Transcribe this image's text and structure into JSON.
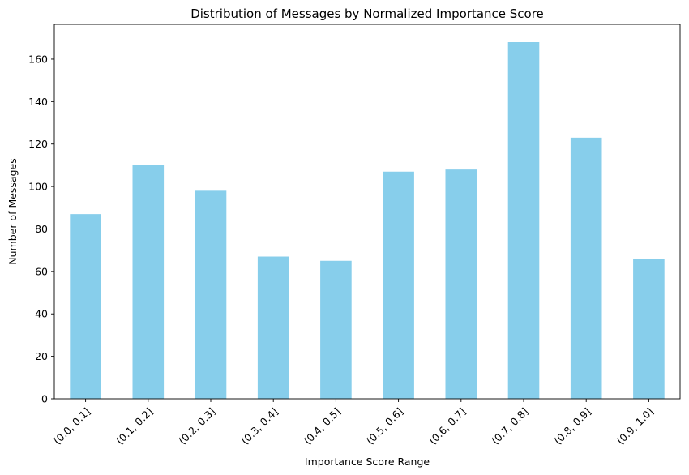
{
  "chart_data": {
    "type": "bar",
    "title": "Distribution of Messages by Normalized Importance Score",
    "xlabel": "Importance Score Range",
    "ylabel": "Number of Messages",
    "categories": [
      "(0.0, 0.1]",
      "(0.1, 0.2]",
      "(0.2, 0.3]",
      "(0.3, 0.4]",
      "(0.4, 0.5]",
      "(0.5, 0.6]",
      "(0.6, 0.7]",
      "(0.7, 0.8]",
      "(0.8, 0.9]",
      "(0.9, 1.0]"
    ],
    "values": [
      87,
      110,
      98,
      67,
      65,
      107,
      108,
      168,
      123,
      66
    ],
    "ylim": [
      0,
      176.4
    ],
    "yticks": [
      0,
      20,
      40,
      60,
      80,
      100,
      120,
      140,
      160
    ],
    "bar_color": "#87CEEB",
    "grid": false,
    "legend": "none",
    "xtick_rotation_deg": 45
  }
}
